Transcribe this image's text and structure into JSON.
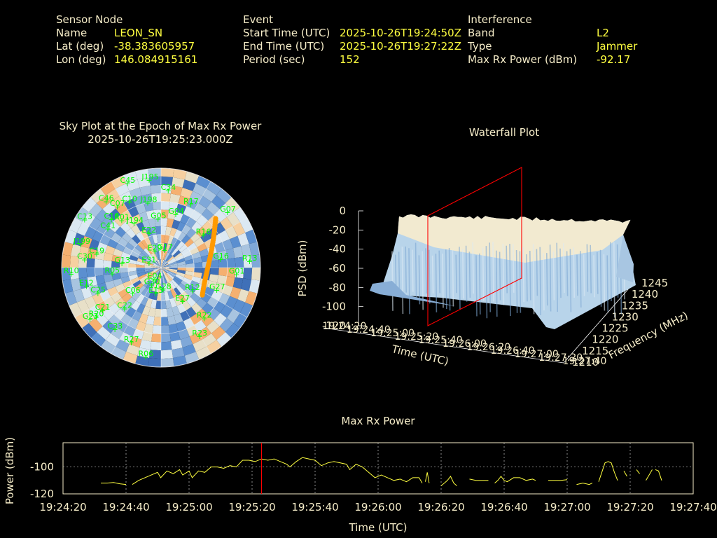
{
  "header": {
    "sensor": {
      "heading": "Sensor Node",
      "name_label": "Name",
      "name_value": "LEON_SN",
      "lat_label": "Lat (deg)",
      "lat_value": "-38.383605957",
      "lon_label": "Lon (deg)",
      "lon_value": "146.084915161"
    },
    "event": {
      "heading": "Event",
      "start_label": "Start Time (UTC)",
      "start_value": "2025-10-26T19:24:50Z",
      "end_label": "End Time (UTC)",
      "end_value": "2025-10-26T19:27:22Z",
      "period_label": "Period (sec)",
      "period_value": "152"
    },
    "interference": {
      "heading": "Interference",
      "band_label": "Band",
      "band_value": "L2",
      "type_label": "Type",
      "type_value": "Jammer",
      "maxrx_label": "Max Rx Power (dBm)",
      "maxrx_value": "-92.17"
    }
  },
  "colors": {
    "label": "#f5ecc8",
    "value": "#ffff40",
    "sat_label": "#00ff00",
    "track": "#ff9a00",
    "marker": "#ff0000",
    "line": "#ffff40",
    "map_blue": "#5b8fd0",
    "map_light": "#dbe8f2",
    "map_orange": "#f5b070"
  },
  "chart_data": [
    {
      "type": "scatter",
      "title": "Sky Plot at the Epoch of Max Rx Power",
      "subtitle": "2025-10-26T19:25:23.000Z",
      "satellites": [
        {
          "name": "C45",
          "az": -22,
          "el": 8
        },
        {
          "name": "J195",
          "az": -8,
          "el": 10
        },
        {
          "name": "C34",
          "az": 5,
          "el": 20
        },
        {
          "name": "C46",
          "az": -40,
          "el": 12
        },
        {
          "name": "C07",
          "az": -36,
          "el": 22
        },
        {
          "name": "C10",
          "az": -26,
          "el": 24
        },
        {
          "name": "J198",
          "az": -12,
          "el": 30
        },
        {
          "name": "R17",
          "az": 25,
          "el": 27
        },
        {
          "name": "C16",
          "az": -46,
          "el": 27
        },
        {
          "name": "R01",
          "az": -40,
          "el": 34
        },
        {
          "name": "J194",
          "az": -32,
          "el": 43
        },
        {
          "name": "G05",
          "az": -4,
          "el": 46
        },
        {
          "name": "G04",
          "az": 15,
          "el": 40
        },
        {
          "name": "C13",
          "az": -58,
          "el": 8
        },
        {
          "name": "G07",
          "az": 50,
          "el": 12
        },
        {
          "name": "C41",
          "az": -54,
          "el": 30
        },
        {
          "name": "J199",
          "az": -74,
          "el": 14
        },
        {
          "name": "C30",
          "az": -84,
          "el": 20
        },
        {
          "name": "C19",
          "az": -78,
          "el": 30
        },
        {
          "name": "E22",
          "az": -20,
          "el": 57
        },
        {
          "name": "E29",
          "az": -22,
          "el": 74
        },
        {
          "name": "G17",
          "az": 10,
          "el": 74
        },
        {
          "name": "R16",
          "az": 52,
          "el": 42
        },
        {
          "name": "G13",
          "az": -84,
          "el": 54
        },
        {
          "name": "E31",
          "az": -70,
          "el": 78
        },
        {
          "name": "R13",
          "az": 86,
          "el": 10
        },
        {
          "name": "G01",
          "az": 95,
          "el": 22
        },
        {
          "name": "G16",
          "az": 82,
          "el": 36
        },
        {
          "name": "R05",
          "az": -97,
          "el": 45
        },
        {
          "name": "R10",
          "az": -94,
          "el": 8
        },
        {
          "name": "E12",
          "az": -104,
          "el": 20
        },
        {
          "name": "C25",
          "az": -112,
          "el": 28
        },
        {
          "name": "C06",
          "az": -132,
          "el": 55
        },
        {
          "name": "G30",
          "az": -150,
          "el": 72
        },
        {
          "name": "E04",
          "az": -150,
          "el": 78
        },
        {
          "name": "G28",
          "az": 176,
          "el": 70
        },
        {
          "name": "R12",
          "az": 127,
          "el": 55
        },
        {
          "name": "G27",
          "az": 112,
          "el": 36
        },
        {
          "name": "C21",
          "az": -126,
          "el": 24
        },
        {
          "name": "C22",
          "az": -138,
          "el": 40
        },
        {
          "name": "G23",
          "az": -126,
          "el": 10
        },
        {
          "name": "R20",
          "az": -127,
          "el": 16
        },
        {
          "name": "C33",
          "az": -143,
          "el": 20
        },
        {
          "name": "R27",
          "az": -158,
          "el": 17
        },
        {
          "name": "R06",
          "az": -170,
          "el": 8
        },
        {
          "name": "E27",
          "az": 148,
          "el": 54
        },
        {
          "name": "R22",
          "az": 140,
          "el": 30
        },
        {
          "name": "R23",
          "az": 151,
          "el": 19
        },
        {
          "name": "E13",
          "az": -168,
          "el": 66
        }
      ]
    },
    {
      "type": "area",
      "title": "Waterfall Plot",
      "zlabel": "PSD (dBm)",
      "xlabel": "Time (UTC)",
      "ylabel": "Frequency (MHz)",
      "zticks": [
        "0",
        "-20",
        "-40",
        "-60",
        "-80",
        "-100",
        "-120"
      ],
      "zlim": [
        -120,
        0
      ],
      "xticks": [
        "19:24:20",
        "19:24:40",
        "19:25:00",
        "19:25:20",
        "19:25:40",
        "19:26:00",
        "19:26:20",
        "19:26:40",
        "19:27:00",
        "19:27:20",
        "19:27:40"
      ],
      "yticks": [
        "1210",
        "1215",
        "1220",
        "1225",
        "1230",
        "1235",
        "1240",
        "1245"
      ],
      "ylim": [
        1210,
        1245
      ],
      "signal_band_mhz": [
        1215,
        1240
      ],
      "signal_level_dbm": -20,
      "noise_floor_dbm": -100,
      "marker_time": "19:25:23"
    },
    {
      "type": "line",
      "title": "Max Rx Power",
      "xlabel": "Time (UTC)",
      "ylabel": "Power (dBm)",
      "xticks": [
        "19:24:20",
        "19:24:40",
        "19:25:00",
        "19:25:20",
        "19:25:40",
        "19:26:00",
        "19:26:20",
        "19:26:40",
        "19:27:00",
        "19:27:20",
        "19:27:40"
      ],
      "yticks": [
        "-100",
        "-120"
      ],
      "ylim": [
        -120,
        -82
      ],
      "grid": true,
      "marker_x_seconds": 63,
      "series": [
        {
          "segments": [
            [
              [
                12,
                -112
              ],
              [
                14,
                -112
              ],
              [
                16,
                -111.5
              ],
              [
                18,
                -112.5
              ],
              [
                20,
                -113
              ]
            ],
            [
              [
                22,
                -113
              ],
              [
                24,
                -110
              ],
              [
                26,
                -108
              ],
              [
                28,
                -106
              ],
              [
                30,
                -104
              ],
              [
                31,
                -108
              ],
              [
                33,
                -103
              ],
              [
                35,
                -105
              ],
              [
                37,
                -102
              ],
              [
                38,
                -106
              ],
              [
                40,
                -103
              ],
              [
                41,
                -108
              ],
              [
                43,
                -103
              ],
              [
                45,
                -104
              ],
              [
                47,
                -100
              ],
              [
                49,
                -100
              ],
              [
                51,
                -101
              ],
              [
                53,
                -99
              ],
              [
                55,
                -100
              ],
              [
                57,
                -95
              ],
              [
                59,
                -95
              ],
              [
                61,
                -96
              ],
              [
                63,
                -94
              ],
              [
                65,
                -95
              ],
              [
                67,
                -94
              ],
              [
                69,
                -96
              ],
              [
                71,
                -98
              ],
              [
                72,
                -100
              ],
              [
                74,
                -96
              ],
              [
                76,
                -93
              ],
              [
                78,
                -94
              ],
              [
                80,
                -95
              ],
              [
                82,
                -99
              ],
              [
                84,
                -97
              ],
              [
                86,
                -96
              ],
              [
                88,
                -97
              ],
              [
                90,
                -98
              ],
              [
                91,
                -102
              ],
              [
                93,
                -98
              ],
              [
                95,
                -100
              ],
              [
                97,
                -104
              ],
              [
                99,
                -108
              ],
              [
                101,
                -106
              ],
              [
                103,
                -108
              ],
              [
                105,
                -110
              ],
              [
                107,
                -109
              ],
              [
                109,
                -111
              ],
              [
                111,
                -108
              ],
              [
                113,
                -108
              ],
              [
                114,
                -112
              ]
            ],
            [
              [
                115,
                -111
              ],
              [
                115.6,
                -104
              ],
              [
                116.2,
                -112
              ]
            ],
            [
              [
                120,
                -114
              ],
              [
                122,
                -110
              ],
              [
                123,
                -107
              ],
              [
                124,
                -112
              ],
              [
                125,
                -114
              ]
            ],
            [
              [
                129,
                -109
              ],
              [
                131,
                -110
              ],
              [
                133,
                -110
              ],
              [
                135,
                -110
              ]
            ],
            [
              [
                137,
                -112
              ],
              [
                138,
                -110
              ],
              [
                139,
                -107
              ],
              [
                140,
                -110
              ],
              [
                141,
                -111
              ],
              [
                143,
                -108
              ],
              [
                145,
                -108
              ],
              [
                147,
                -110
              ],
              [
                149,
                -109
              ],
              [
                150,
                -110
              ]
            ],
            [
              [
                154,
                -110
              ],
              [
                156,
                -110
              ],
              [
                158,
                -110
              ],
              [
                160,
                -109.5
              ]
            ],
            [
              [
                163,
                -113
              ],
              [
                165,
                -112
              ],
              [
                167,
                -113
              ],
              [
                168,
                -112
              ]
            ],
            [
              [
                170,
                -111
              ],
              [
                172,
                -97
              ],
              [
                173,
                -96
              ],
              [
                174,
                -97
              ],
              [
                175,
                -104
              ],
              [
                176,
                -110
              ]
            ],
            [
              [
                178,
                -103
              ],
              [
                179,
                -107
              ]
            ],
            [
              [
                182,
                -102
              ],
              [
                183,
                -105
              ]
            ],
            [
              [
                185,
                -110
              ],
              [
                186,
                -106
              ],
              [
                187,
                -102
              ]
            ],
            [
              [
                188,
                -102
              ],
              [
                189,
                -103
              ],
              [
                190,
                -110
              ]
            ]
          ]
        }
      ]
    }
  ]
}
